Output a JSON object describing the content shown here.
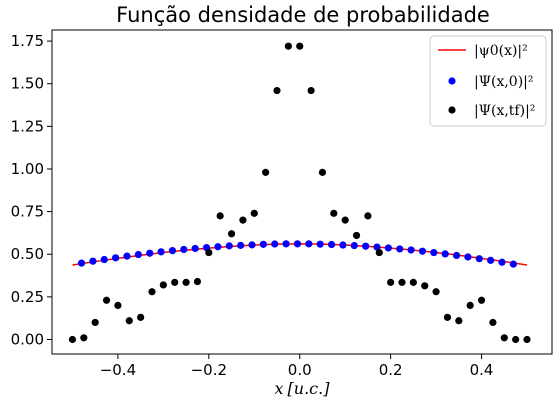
{
  "chart_data": {
    "type": "scatter",
    "title": "Função densidade de probabilidade",
    "xlabel": "x [u.c.]",
    "ylabel": "",
    "xlim": [
      -0.545,
      0.555
    ],
    "ylim": [
      -0.085,
      1.815
    ],
    "x_ticks": [
      -0.4,
      -0.2,
      0.0,
      0.2,
      0.4
    ],
    "x_tick_labels": [
      "−0.4",
      "−0.2",
      "0.0",
      "0.2",
      "0.4"
    ],
    "y_ticks": [
      0.0,
      0.25,
      0.5,
      0.75,
      1.0,
      1.25,
      1.5,
      1.75
    ],
    "y_tick_labels": [
      "0.00",
      "0.25",
      "0.50",
      "0.75",
      "1.00",
      "1.25",
      "1.50",
      "1.75"
    ],
    "grid": false,
    "legend_position": "top-right",
    "series": [
      {
        "name": "|ψ0(x)|²",
        "kind": "line",
        "color": "#ff0000",
        "x": [
          -0.5,
          -0.45,
          -0.4,
          -0.35,
          -0.3,
          -0.25,
          -0.2,
          -0.15,
          -0.1,
          -0.05,
          0.0,
          0.05,
          0.1,
          0.15,
          0.2,
          0.25,
          0.3,
          0.35,
          0.4,
          0.45,
          0.5
        ],
        "y": [
          0.437,
          0.457,
          0.476,
          0.494,
          0.51,
          0.524,
          0.536,
          0.546,
          0.554,
          0.559,
          0.561,
          0.559,
          0.554,
          0.546,
          0.536,
          0.524,
          0.51,
          0.494,
          0.476,
          0.457,
          0.437
        ]
      },
      {
        "name": "|Ψ(x,0)|²",
        "kind": "scatter",
        "color": "#0000ff",
        "x": [
          -0.48,
          -0.455,
          -0.43,
          -0.405,
          -0.38,
          -0.355,
          -0.33,
          -0.305,
          -0.28,
          -0.255,
          -0.23,
          -0.205,
          -0.18,
          -0.155,
          -0.13,
          -0.105,
          -0.08,
          -0.055,
          -0.03,
          -0.005,
          0.02,
          0.045,
          0.07,
          0.095,
          0.12,
          0.145,
          0.17,
          0.195,
          0.22,
          0.245,
          0.27,
          0.295,
          0.32,
          0.345,
          0.37,
          0.395,
          0.42,
          0.445,
          0.47
        ],
        "y": [
          0.448,
          0.459,
          0.469,
          0.479,
          0.489,
          0.498,
          0.506,
          0.514,
          0.521,
          0.528,
          0.534,
          0.539,
          0.544,
          0.549,
          0.552,
          0.555,
          0.558,
          0.56,
          0.561,
          0.561,
          0.561,
          0.559,
          0.557,
          0.554,
          0.551,
          0.547,
          0.542,
          0.537,
          0.531,
          0.525,
          0.518,
          0.51,
          0.502,
          0.493,
          0.484,
          0.474,
          0.464,
          0.453,
          0.442
        ]
      },
      {
        "name": "|Ψ(x,tf)|²",
        "kind": "scatter",
        "color": "#000000",
        "x": [
          -0.5,
          -0.475,
          -0.45,
          -0.425,
          -0.4,
          -0.375,
          -0.35,
          -0.325,
          -0.3,
          -0.275,
          -0.25,
          -0.225,
          -0.2,
          -0.175,
          -0.15,
          -0.125,
          -0.1,
          -0.075,
          -0.05,
          -0.025,
          0.0,
          0.025,
          0.05,
          0.075,
          0.1,
          0.125,
          0.15,
          0.175,
          0.2,
          0.225,
          0.25,
          0.275,
          0.3,
          0.325,
          0.35,
          0.375,
          0.4,
          0.425,
          0.45,
          0.475,
          0.5
        ],
        "y": [
          0.0,
          0.01,
          0.1,
          0.23,
          0.2,
          0.11,
          0.13,
          0.28,
          0.32,
          0.335,
          0.335,
          0.34,
          0.51,
          0.725,
          0.62,
          0.7,
          0.74,
          0.98,
          1.46,
          1.72,
          1.72,
          1.46,
          0.98,
          0.74,
          0.7,
          0.61,
          0.725,
          0.51,
          0.335,
          0.335,
          0.335,
          0.315,
          0.28,
          0.13,
          0.11,
          0.2,
          0.23,
          0.1,
          0.01,
          0.0,
          0.0
        ]
      }
    ]
  }
}
